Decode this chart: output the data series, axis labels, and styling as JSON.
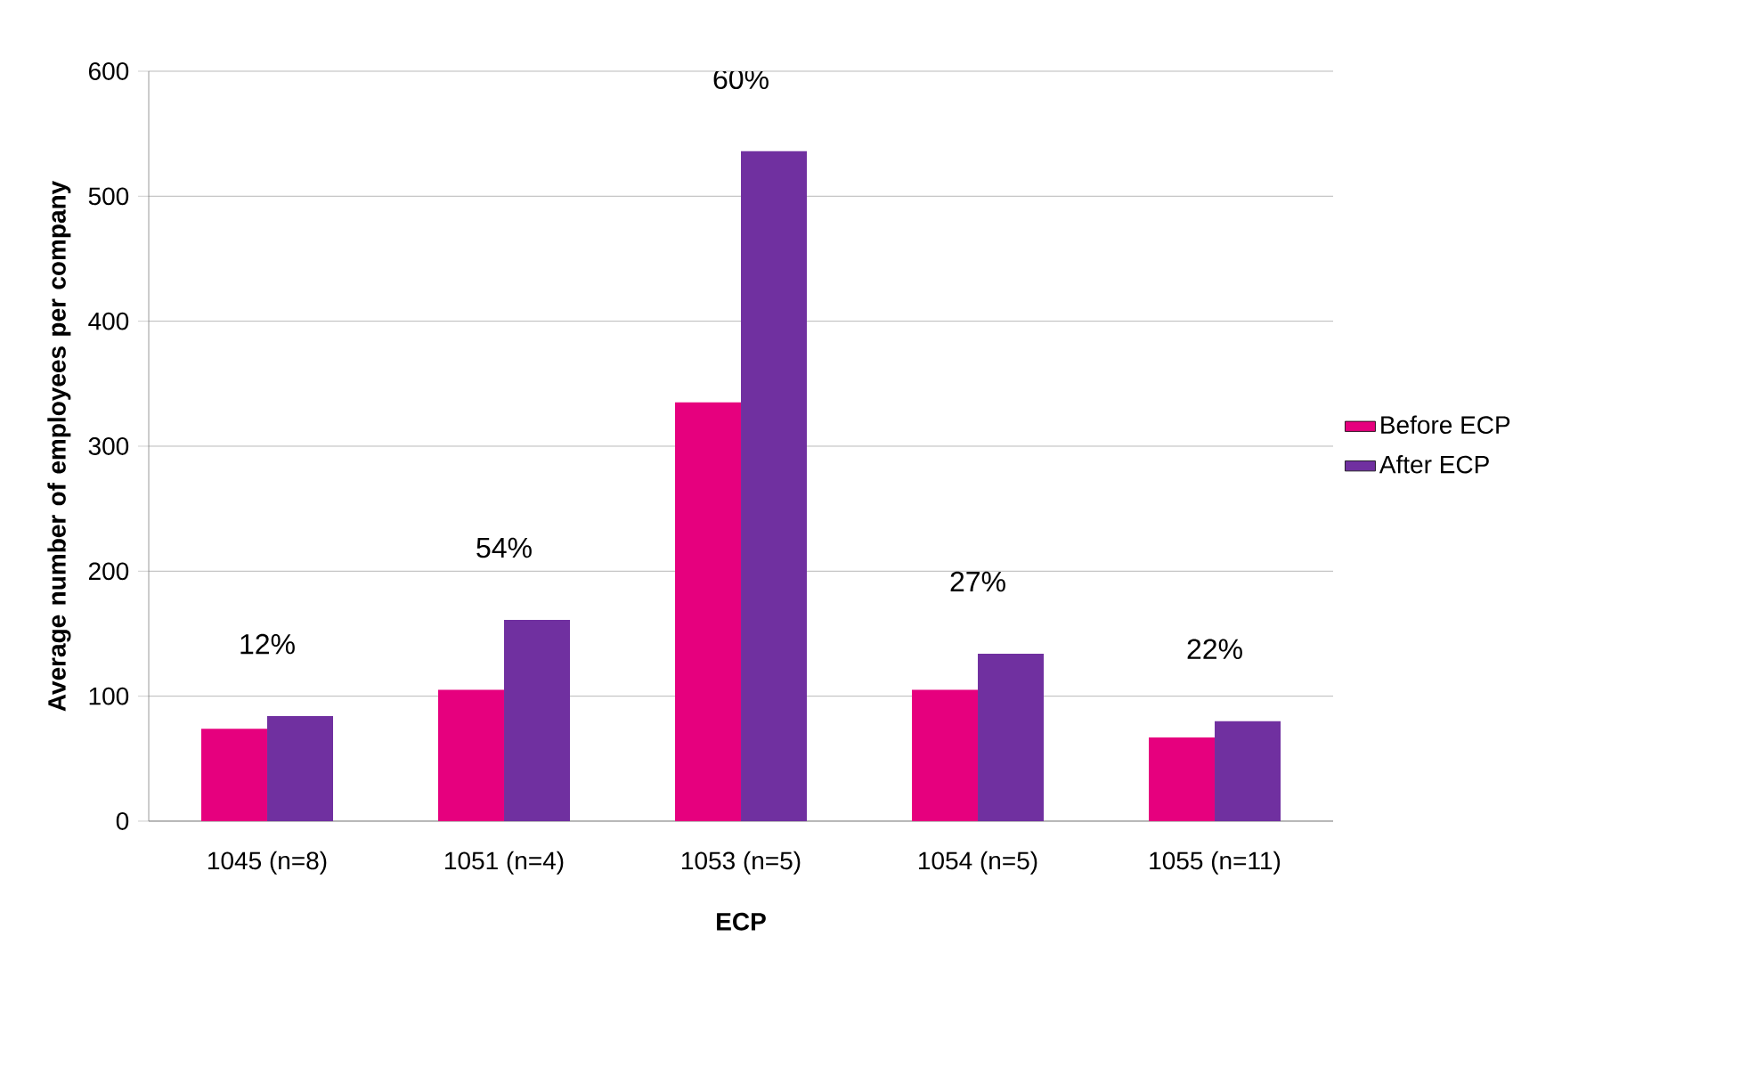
{
  "chart_data": {
    "type": "bar",
    "xlabel": "ECP",
    "ylabel": "Average number of employees per company",
    "categories": [
      "1045 (n=8)",
      "1051 (n=4)",
      "1053 (n=5)",
      "1054 (n=5)",
      "1055 (n=11)"
    ],
    "series": [
      {
        "name": "Before ECP",
        "color": "#e6007e",
        "values": [
          74,
          105,
          335,
          105,
          67
        ]
      },
      {
        "name": "After ECP",
        "color": "#7030a0",
        "values": [
          84,
          161,
          536,
          134,
          80
        ]
      }
    ],
    "ylim": [
      0,
      600
    ],
    "yticks": [
      0,
      100,
      200,
      300,
      400,
      500,
      600
    ],
    "grid": "y",
    "legend": "right",
    "annotations": [
      "12%",
      "54%",
      "60%",
      "27%",
      "22%"
    ]
  }
}
